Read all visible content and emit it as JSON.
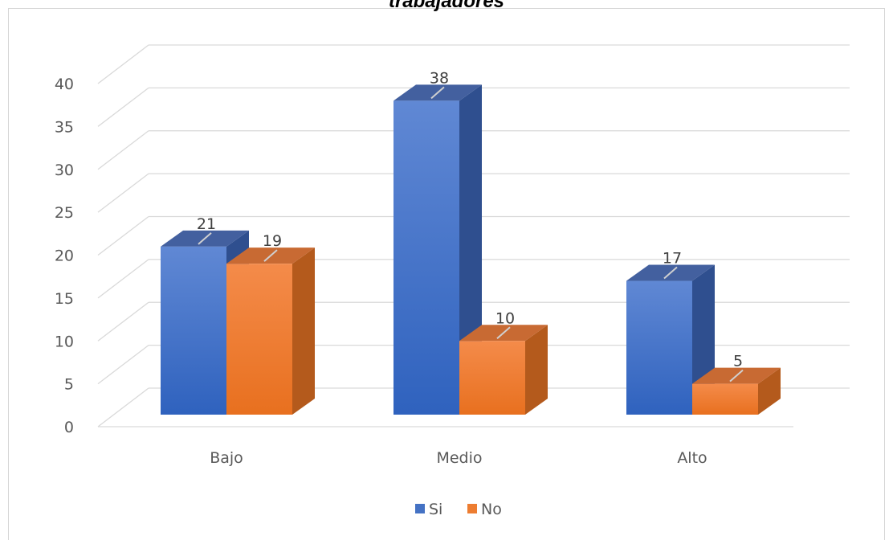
{
  "chart_data": {
    "type": "bar",
    "title": "trabajadores",
    "categories": [
      "Bajo",
      "Medio",
      "Alto"
    ],
    "series": [
      {
        "name": "Si",
        "values": [
          21,
          38,
          17
        ],
        "color": "#4472C4"
      },
      {
        "name": "No",
        "values": [
          19,
          10,
          5
        ],
        "color": "#ED7D31"
      }
    ],
    "ylim": [
      0,
      40
    ],
    "yticks": [
      "0",
      "5",
      "10",
      "15",
      "20",
      "25",
      "30",
      "35",
      "40"
    ],
    "data_labels": true,
    "grid": true,
    "legend_position": "bottom",
    "style": "3d-clustered-column"
  }
}
